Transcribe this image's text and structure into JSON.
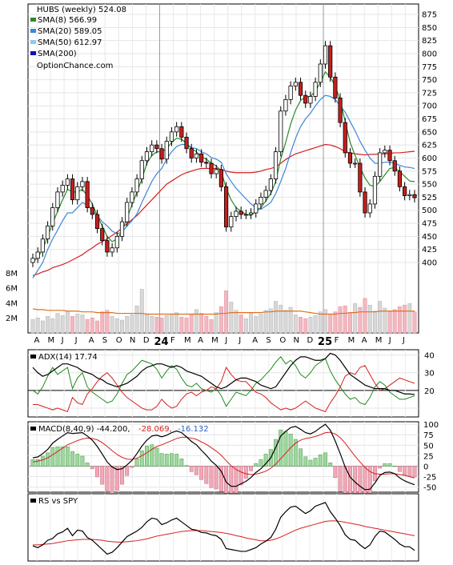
{
  "chart_data": [
    {
      "type": "candlestick",
      "ticker_label": "HUBS (weekly) 524.08",
      "watermark": "OptionChance.com",
      "legend": [
        {
          "label": "SMA(8) 566.99",
          "color": "#2a8a2a"
        },
        {
          "label": "SMA(20) 589.05",
          "color": "#3d86d8"
        },
        {
          "label": "SMA(50) 612.97",
          "color": "#8ecaf0"
        },
        {
          "label": "SMA(200)",
          "color": "#1010c0"
        }
      ],
      "price_ticks": [
        "875",
        "850",
        "825",
        "800",
        "775",
        "750",
        "725",
        "700",
        "675",
        "650",
        "625",
        "600",
        "575",
        "550",
        "525",
        "500",
        "475",
        "450",
        "425",
        "400"
      ],
      "volume_ticks": [
        "8M",
        "6M",
        "4M",
        "2M"
      ],
      "x_ticks": [
        "A",
        "M",
        "J",
        "J",
        "A",
        "S",
        "O",
        "N",
        "D",
        "24",
        "F",
        "M",
        "A",
        "M",
        "J",
        "J",
        "A",
        "S",
        "O",
        "N",
        "D",
        "25",
        "F",
        "M",
        "A",
        "M",
        "J",
        "J"
      ],
      "ylim": [
        400,
        885
      ],
      "close": [
        408,
        420,
        445,
        470,
        505,
        535,
        548,
        560,
        520,
        545,
        555,
        505,
        492,
        465,
        442,
        420,
        428,
        450,
        478,
        515,
        535,
        560,
        595,
        612,
        625,
        618,
        598,
        632,
        650,
        660,
        640,
        618,
        600,
        608,
        592,
        590,
        570,
        578,
        545,
        468,
        488,
        498,
        492,
        492,
        495,
        512,
        525,
        538,
        560,
        612,
        690,
        712,
        738,
        745,
        720,
        705,
        718,
        745,
        780,
        815,
        755,
        715,
        668,
        610,
        590,
        590,
        535,
        495,
        512,
        565,
        610,
        615,
        595,
        575,
        545,
        528,
        530,
        524
      ],
      "sma8": [
        400,
        410,
        425,
        450,
        475,
        498,
        520,
        540,
        535,
        535,
        540,
        528,
        512,
        490,
        470,
        450,
        440,
        445,
        460,
        485,
        510,
        535,
        560,
        590,
        605,
        612,
        612,
        618,
        630,
        638,
        636,
        628,
        618,
        612,
        602,
        598,
        590,
        585,
        575,
        542,
        520,
        505,
        498,
        492,
        490,
        497,
        505,
        518,
        532,
        555,
        598,
        630,
        665,
        692,
        710,
        717,
        718,
        728,
        745,
        765,
        755,
        738,
        710,
        670,
        630,
        605,
        582,
        562,
        548,
        545,
        555,
        568,
        580,
        582,
        574,
        565,
        556,
        555
      ],
      "sma20": [
        370,
        385,
        400,
        425,
        445,
        462,
        480,
        495,
        495,
        505,
        515,
        510,
        500,
        490,
        478,
        470,
        460,
        455,
        458,
        470,
        480,
        493,
        515,
        535,
        555,
        570,
        580,
        598,
        612,
        622,
        626,
        626,
        620,
        618,
        612,
        608,
        601,
        598,
        592,
        570,
        555,
        542,
        532,
        522,
        512,
        505,
        502,
        508,
        515,
        532,
        555,
        580,
        610,
        638,
        660,
        675,
        686,
        700,
        712,
        720,
        718,
        712,
        700,
        688,
        670,
        652,
        632,
        615,
        600,
        590,
        590,
        592,
        592,
        590,
        586,
        583,
        582,
        580
      ],
      "sma200": [
        375,
        378,
        382,
        385,
        390,
        393,
        396,
        400,
        405,
        410,
        415,
        422,
        428,
        435,
        440,
        445,
        452,
        458,
        466,
        474,
        482,
        490,
        500,
        510,
        520,
        530,
        540,
        550,
        556,
        562,
        568,
        572,
        575,
        578,
        580,
        580,
        580,
        580,
        578,
        575,
        573,
        572,
        572,
        572,
        572,
        573,
        575,
        578,
        580,
        583,
        590,
        597,
        603,
        608,
        611,
        614,
        617,
        620,
        623,
        626,
        625,
        622,
        618,
        612,
        610,
        608,
        607,
        606,
        607,
        607,
        608,
        608,
        609,
        610,
        610,
        611,
        612,
        613
      ],
      "volume": [
        1.8,
        2.0,
        1.6,
        2.2,
        1.9,
        2.6,
        2.3,
        2.9,
        2.2,
        2.5,
        2.4,
        1.8,
        2.0,
        1.6,
        2.8,
        3.0,
        2.2,
        1.9,
        1.7,
        2.2,
        2.4,
        3.6,
        5.8,
        2.5,
        2.2,
        2.1,
        2.0,
        2.3,
        2.5,
        2.7,
        2.1,
        2.0,
        2.4,
        3.1,
        2.6,
        2.2,
        1.8,
        2.7,
        3.5,
        5.6,
        4.1,
        3.0,
        2.4,
        1.9,
        2.6,
        2.2,
        2.5,
        3.0,
        3.2,
        4.2,
        3.7,
        3.0,
        3.4,
        2.4,
        2.1,
        1.9,
        2.1,
        2.3,
        2.8,
        3.1,
        2.5,
        2.8,
        3.5,
        3.6,
        2.6,
        3.9,
        3.4,
        4.6,
        3.7,
        2.9,
        4.2,
        3.3,
        2.8,
        3.1,
        3.5,
        3.7,
        3.9,
        2.8
      ],
      "volume_avg": [
        3.2,
        3.1,
        3.1,
        3.0,
        3.0,
        3.0,
        3.0,
        2.9,
        2.9,
        2.9,
        2.8,
        2.8,
        2.8,
        2.7,
        2.7,
        2.7,
        2.7,
        2.6,
        2.6,
        2.6,
        2.6,
        2.6,
        2.6,
        2.5,
        2.5,
        2.5,
        2.5,
        2.5,
        2.5,
        2.5,
        2.5,
        2.5,
        2.5,
        2.5,
        2.5,
        2.5,
        2.5,
        2.5,
        2.6,
        2.6,
        2.7,
        2.7,
        2.7,
        2.7,
        2.7,
        2.7,
        2.7,
        2.8,
        2.8,
        2.9,
        2.9,
        2.9,
        2.9,
        2.9,
        2.9,
        2.8,
        2.7,
        2.6,
        2.5,
        2.5,
        2.5,
        2.5,
        2.6,
        2.6,
        2.7,
        2.7,
        2.8,
        2.8,
        2.8,
        2.8,
        2.9,
        2.9,
        2.9,
        2.9,
        2.9,
        2.9,
        2.9,
        2.9
      ]
    },
    {
      "type": "line",
      "label": "ADX(14) 17.74",
      "ticks": [
        "40",
        "30",
        "20",
        "10"
      ],
      "ylim": [
        5,
        43
      ],
      "adx": [
        33,
        30,
        28,
        29,
        31,
        33,
        35,
        35,
        34,
        33,
        31,
        30,
        29,
        27,
        26,
        24,
        23,
        22,
        23,
        24,
        26,
        28,
        31,
        33,
        34,
        35,
        35,
        34,
        33,
        34,
        33,
        31,
        30,
        29,
        28,
        26,
        24,
        22,
        21,
        22,
        24,
        26,
        27,
        27,
        26,
        25,
        23,
        22,
        21,
        22,
        26,
        30,
        34,
        37,
        39,
        39,
        38,
        37,
        37,
        38,
        41,
        40,
        37,
        33,
        29,
        27,
        25,
        23,
        22,
        21,
        21,
        21,
        20,
        20,
        19,
        18,
        18,
        17.7
      ],
      "plus_di": [
        20,
        18,
        22,
        28,
        33,
        29,
        31,
        33,
        21,
        27,
        30,
        22,
        19,
        17,
        15,
        13,
        14,
        18,
        24,
        29,
        31,
        34,
        37,
        36,
        35,
        32,
        27,
        31,
        34,
        32,
        27,
        23,
        22,
        24,
        21,
        20,
        19,
        21,
        17,
        11,
        15,
        19,
        18,
        17,
        20,
        24,
        26,
        29,
        32,
        36,
        39,
        35,
        37,
        34,
        29,
        27,
        30,
        34,
        36,
        38,
        31,
        26,
        22,
        18,
        15,
        16,
        13,
        12,
        16,
        22,
        25,
        23,
        19,
        17,
        15,
        15,
        16,
        17
      ],
      "minus_di": [
        12,
        12,
        11,
        10,
        9,
        10,
        9,
        8,
        16,
        13,
        12,
        18,
        21,
        25,
        28,
        30,
        27,
        23,
        19,
        16,
        14,
        12,
        10,
        9,
        9,
        11,
        15,
        12,
        10,
        11,
        15,
        18,
        19,
        17,
        19,
        20,
        22,
        21,
        25,
        33,
        29,
        26,
        25,
        25,
        22,
        19,
        18,
        16,
        13,
        11,
        9,
        10,
        9,
        10,
        12,
        14,
        12,
        10,
        9,
        8,
        13,
        17,
        22,
        28,
        30,
        29,
        33,
        34,
        29,
        24,
        20,
        21,
        23,
        25,
        27,
        26,
        25,
        24
      ]
    },
    {
      "type": "line",
      "label": "MACD(8,40,9)  -44.200,",
      "signal_label": "-28.069,",
      "hist_label": "-16.132",
      "ticks": [
        "100",
        "75",
        "50",
        "25",
        "0",
        "-25",
        "-50"
      ],
      "ylim": [
        -62,
        106
      ],
      "macd": [
        20,
        22,
        30,
        40,
        55,
        64,
        72,
        80,
        78,
        79,
        80,
        72,
        62,
        47,
        29,
        10,
        -2,
        -8,
        -6,
        3,
        14,
        30,
        48,
        62,
        72,
        74,
        70,
        74,
        80,
        84,
        80,
        70,
        59,
        51,
        38,
        26,
        12,
        2,
        -12,
        -38,
        -48,
        -48,
        -42,
        -36,
        -27,
        -15,
        -6,
        6,
        20,
        45,
        72,
        83,
        92,
        95,
        88,
        80,
        77,
        83,
        92,
        100,
        86,
        60,
        30,
        -2,
        -26,
        -38,
        -48,
        -56,
        -55,
        -40,
        -22,
        -15,
        -14,
        -18,
        -28,
        -35,
        -40,
        -44.2
      ],
      "signal": [
        10,
        12,
        15,
        20,
        27,
        35,
        43,
        51,
        56,
        61,
        65,
        67,
        66,
        63,
        56,
        47,
        37,
        28,
        21,
        17,
        16,
        19,
        25,
        32,
        40,
        47,
        51,
        56,
        61,
        66,
        69,
        69,
        67,
        64,
        58,
        52,
        44,
        36,
        26,
        13,
        1,
        -8,
        -14,
        -18,
        -20,
        -19,
        -16,
        -12,
        -5,
        5,
        18,
        31,
        44,
        55,
        62,
        66,
        68,
        71,
        75,
        80,
        81,
        77,
        68,
        55,
        39,
        24,
        10,
        -3,
        -13,
        -18,
        -19,
        -19,
        -18,
        -18,
        -20,
        -22,
        -25,
        -28.1
      ]
    },
    {
      "type": "line",
      "label": "RS vs SPY",
      "rs": [
        26,
        22,
        28,
        38,
        42,
        52,
        56,
        64,
        48,
        60,
        58,
        44,
        38,
        28,
        18,
        8,
        12,
        22,
        34,
        46,
        52,
        58,
        66,
        78,
        86,
        84,
        72,
        76,
        82,
        86,
        78,
        70,
        62,
        60,
        55,
        54,
        50,
        48,
        40,
        20,
        18,
        16,
        14,
        14,
        18,
        22,
        30,
        36,
        44,
        62,
        88,
        100,
        110,
        112,
        104,
        96,
        102,
        112,
        116,
        120,
        100,
        86,
        70,
        50,
        40,
        38,
        28,
        20,
        28,
        46,
        58,
        56,
        48,
        40,
        30,
        24,
        24,
        16
      ],
      "rs_ma": [
        28,
        28,
        29,
        30,
        31,
        33,
        35,
        37,
        38,
        39,
        40,
        40,
        40,
        39,
        38,
        36,
        35,
        34,
        34,
        35,
        36,
        37,
        39,
        41,
        44,
        47,
        49,
        51,
        53,
        55,
        57,
        58,
        59,
        59,
        59,
        58,
        57,
        56,
        55,
        53,
        51,
        48,
        46,
        43,
        41,
        39,
        37,
        37,
        38,
        41,
        45,
        50,
        55,
        60,
        64,
        67,
        70,
        73,
        76,
        79,
        80,
        80,
        79,
        77,
        75,
        73,
        71,
        68,
        66,
        64,
        62,
        60,
        58,
        56,
        54,
        52,
        50,
        48
      ]
    }
  ]
}
